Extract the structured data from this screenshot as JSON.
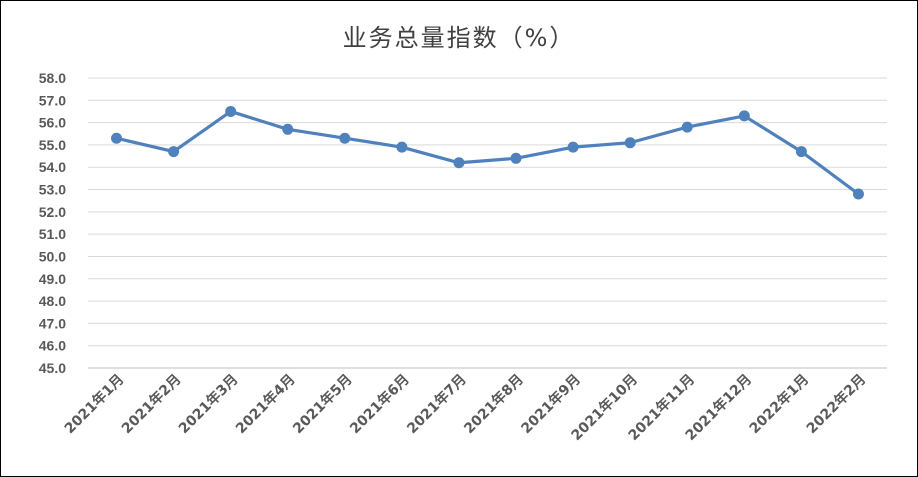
{
  "chart_data": {
    "type": "line",
    "title": "业务总量指数（%）",
    "xlabel": "",
    "ylabel": "",
    "categories": [
      "2021年1月",
      "2021年2月",
      "2021年3月",
      "2021年4月",
      "2021年5月",
      "2021年6月",
      "2021年7月",
      "2021年8月",
      "2021年9月",
      "2021年10月",
      "2021年11月",
      "2021年12月",
      "2022年1月",
      "2022年2月"
    ],
    "series": [
      {
        "values": [
          55.3,
          54.7,
          56.5,
          55.7,
          55.3,
          54.9,
          54.2,
          54.4,
          54.9,
          55.1,
          55.8,
          56.3,
          54.7,
          52.8
        ],
        "color": "#4f81bd"
      }
    ],
    "ylim": [
      45.0,
      58.0
    ],
    "yticks": [
      "45.0",
      "46.0",
      "47.0",
      "48.0",
      "49.0",
      "50.0",
      "51.0",
      "52.0",
      "53.0",
      "54.0",
      "55.0",
      "56.0",
      "57.0",
      "58.0"
    ],
    "grid": true,
    "gridColor": "#d9d9d9",
    "legend": "none"
  }
}
